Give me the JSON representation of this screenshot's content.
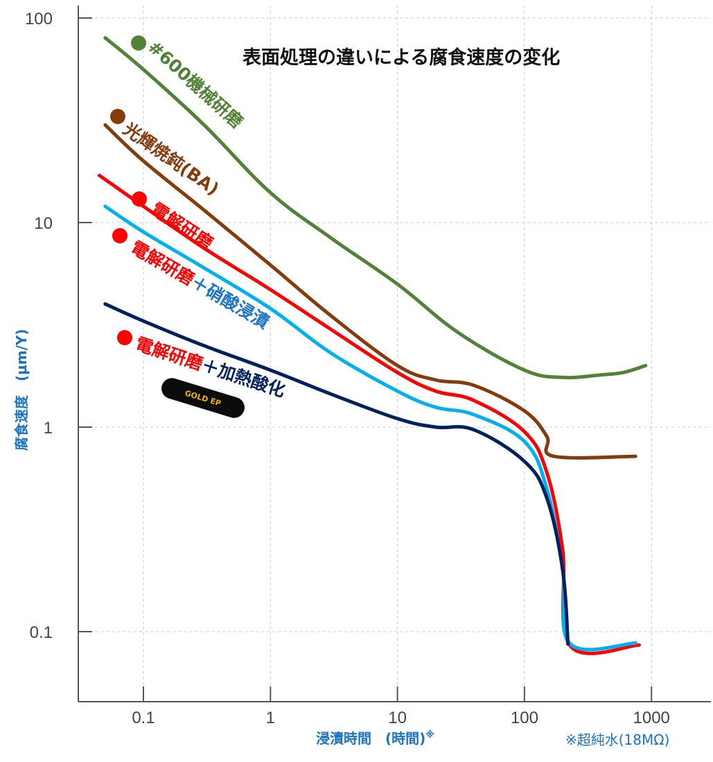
{
  "chart_data": {
    "type": "line",
    "title": "表面処理の違いによる腐食速度の変化",
    "xlabel": "浸漬時間　(時間)",
    "xlabel_mark": "※",
    "ylabel": "腐食速度　(μm/Y)",
    "note": "※超純水(18MΩ)",
    "x_scale": "log",
    "y_scale": "log",
    "xlim": [
      0.03,
      3000
    ],
    "ylim": [
      0.04,
      150
    ],
    "x_ticks": [
      0.1,
      1,
      10,
      100,
      1000
    ],
    "x_tick_labels": [
      "0.1",
      "1",
      "10",
      "100",
      "1000"
    ],
    "y_ticks": [
      0.1,
      1,
      10,
      100
    ],
    "y_tick_labels": [
      "0.1",
      "1",
      "10",
      "100"
    ],
    "grid": true,
    "legend": "inline labels",
    "series": [
      {
        "name": "#600機械研磨",
        "color": "#538135",
        "x": [
          0.05,
          0.1,
          0.3,
          1,
          3,
          10,
          30,
          100,
          200,
          400,
          600,
          900
        ],
        "y": [
          80,
          56,
          30,
          14,
          8.4,
          5,
          2.9,
          1.9,
          1.75,
          1.8,
          1.85,
          2.0
        ]
      },
      {
        "name": "光輝焼鈍(BA)",
        "color": "#843c0c",
        "x": [
          0.05,
          0.1,
          0.3,
          1,
          3,
          10,
          20,
          40,
          100,
          150,
          170,
          750
        ],
        "y": [
          30,
          20,
          11.5,
          6.2,
          3.5,
          2.0,
          1.7,
          1.6,
          1.2,
          0.9,
          0.72,
          0.72
        ]
      },
      {
        "name": "電解研磨",
        "color": "#ff0000",
        "x": [
          0.045,
          0.1,
          0.3,
          1,
          3,
          10,
          20,
          40,
          100,
          150,
          200,
          230,
          800
        ],
        "y": [
          17,
          12,
          7.5,
          4.7,
          3.0,
          1.85,
          1.5,
          1.35,
          0.95,
          0.6,
          0.25,
          0.085,
          0.086
        ]
      },
      {
        "name": "電解研磨＋硝酸浸漬",
        "color": "#00b0f0",
        "x": [
          0.05,
          0.1,
          0.3,
          1,
          3,
          10,
          20,
          40,
          100,
          150,
          200,
          230,
          750
        ],
        "y": [
          12,
          9.0,
          6.0,
          3.8,
          2.3,
          1.5,
          1.25,
          1.15,
          0.85,
          0.5,
          0.2,
          0.087,
          0.088
        ]
      },
      {
        "name": "電解研磨＋加熱酸化",
        "color": "#002060",
        "x": [
          0.05,
          0.1,
          0.3,
          1,
          3,
          10,
          20,
          40,
          100,
          150,
          200,
          220
        ],
        "y": [
          4.0,
          3.3,
          2.5,
          1.9,
          1.45,
          1.1,
          1.0,
          0.97,
          0.68,
          0.45,
          0.2,
          0.087
        ]
      }
    ],
    "badge": "GOLD EP"
  }
}
